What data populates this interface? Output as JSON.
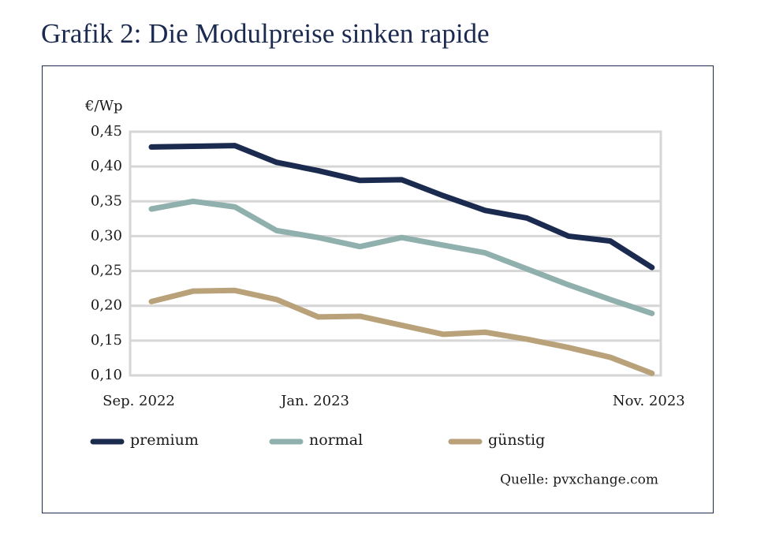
{
  "chart_data": {
    "type": "line",
    "title": "Grafik 2: Die Modulpreise sinken rapide",
    "y_label": "€/Wp",
    "source": "Quelle: pvxchange.com",
    "categories": [
      "Sep. 2022",
      null,
      null,
      null,
      "Jan. 2023",
      null,
      null,
      null,
      null,
      null,
      null,
      null,
      "Nov. 2023"
    ],
    "series": [
      {
        "name": "premium",
        "color": "#1b2a4f",
        "values": [
          0.428,
          0.429,
          0.43,
          0.406,
          0.394,
          0.38,
          0.381,
          0.358,
          0.337,
          0.326,
          0.3,
          0.293,
          0.255
        ]
      },
      {
        "name": "normal",
        "color": "#8fb0ad",
        "values": [
          0.339,
          0.35,
          0.342,
          0.308,
          0.298,
          0.285,
          0.298,
          0.287,
          0.276,
          0.253,
          0.23,
          0.209,
          0.189
        ]
      },
      {
        "name": "günstig",
        "color": "#b9a27a",
        "values": [
          0.206,
          0.221,
          0.222,
          0.209,
          0.184,
          0.185,
          0.172,
          0.159,
          0.162,
          0.152,
          0.14,
          0.126,
          0.103
        ]
      }
    ],
    "ylim": [
      0.1,
      0.45
    ],
    "yticks": [
      {
        "value": 0.1,
        "label": "0,10"
      },
      {
        "value": 0.15,
        "label": "0,15"
      },
      {
        "value": 0.2,
        "label": "0,20"
      },
      {
        "value": 0.25,
        "label": "0,25"
      },
      {
        "value": 0.3,
        "label": "0,30"
      },
      {
        "value": 0.35,
        "label": "0,35"
      },
      {
        "value": 0.4,
        "label": "0,40"
      },
      {
        "value": 0.45,
        "label": "0,45"
      }
    ],
    "grid": true
  }
}
